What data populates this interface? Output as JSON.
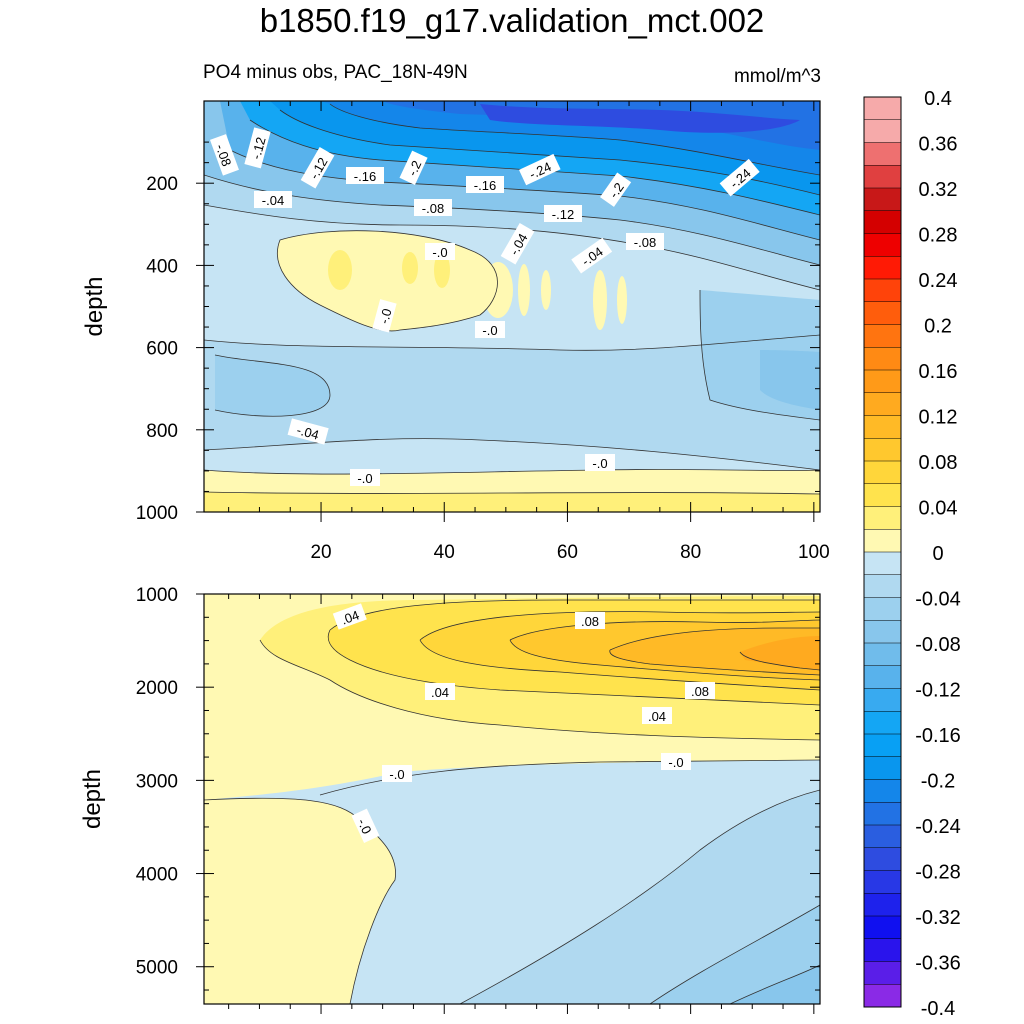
{
  "title": "b1850.f19_g17.validation_mct.002",
  "subtitle_left": "PO4 minus obs, PAC_18N-49N",
  "subtitle_right": "mmol/m^3",
  "colors": {
    "pos": [
      "#fff9b3",
      "#fff07a",
      "#ffe34d",
      "#ffd63a",
      "#ffc82e",
      "#ffba26",
      "#ffaa1f",
      "#ff9a18",
      "#ff8a14",
      "#ff7410",
      "#ff5d0c",
      "#ff430a",
      "#ff1a05",
      "#ee0000",
      "#d40000",
      "#c81818",
      "#e04040",
      "#ee7070",
      "#f6aaaa"
    ],
    "neg": [
      "#c6e4f4",
      "#b0d9f0",
      "#9cd0ee",
      "#88c6ec",
      "#70bceb",
      "#58b2ec",
      "#38aaf0",
      "#14a6f4",
      "#08a0f4",
      "#0996ee",
      "#1486ea",
      "#2272e4",
      "#2a5ee0",
      "#2e4ce0",
      "#2838e6",
      "#1e22ec",
      "#1010f0",
      "#2a14ec",
      "#5a1ee8",
      "#8a2ae6"
    ]
  },
  "chart_data": [
    {
      "type": "contour",
      "panel": "upper",
      "title": "PO4 minus obs, PAC_18N-49N",
      "units": "mmol/m^3",
      "xlabel": "",
      "ylabel": "depth",
      "xlim": [
        1,
        101
      ],
      "ylim": [
        1000,
        0
      ],
      "xticks": [
        "20",
        "40",
        "60",
        "80",
        "100"
      ],
      "yticks": [
        "200",
        "400",
        "600",
        "800",
        "1000"
      ],
      "contour_labels": [
        "-.08",
        "-.12",
        "-.12",
        "-.16",
        "-.2",
        "-.16",
        "-.24",
        "-.2",
        "-.24",
        "-.04",
        "-.08",
        "-.12",
        "-.0",
        "-.04",
        "-.04",
        "-.08",
        "-.0",
        "-.0",
        "-.04",
        "-.0",
        "-.0"
      ]
    },
    {
      "type": "contour",
      "panel": "lower",
      "xlabel": "",
      "ylabel": "depth",
      "xlim": [
        1,
        101
      ],
      "ylim": [
        5400,
        1000
      ],
      "yticks": [
        "1000",
        "2000",
        "3000",
        "4000",
        "5000"
      ],
      "contour_labels": [
        ".04",
        ".08",
        ".04",
        ".08",
        ".04",
        "-.0",
        "-.0",
        "-.0"
      ]
    },
    {
      "type": "colorbar",
      "levels": [
        "0.4",
        "0.36",
        "0.32",
        "0.28",
        "0.24",
        "0.2",
        "0.16",
        "0.12",
        "0.08",
        "0.04",
        "0",
        "-0.04",
        "-0.08",
        "-0.12",
        "-0.16",
        "-0.2",
        "-0.24",
        "-0.28",
        "-0.32",
        "-0.36",
        "-0.4"
      ],
      "range": [
        -0.4,
        0.4
      ],
      "step": 0.02
    }
  ]
}
